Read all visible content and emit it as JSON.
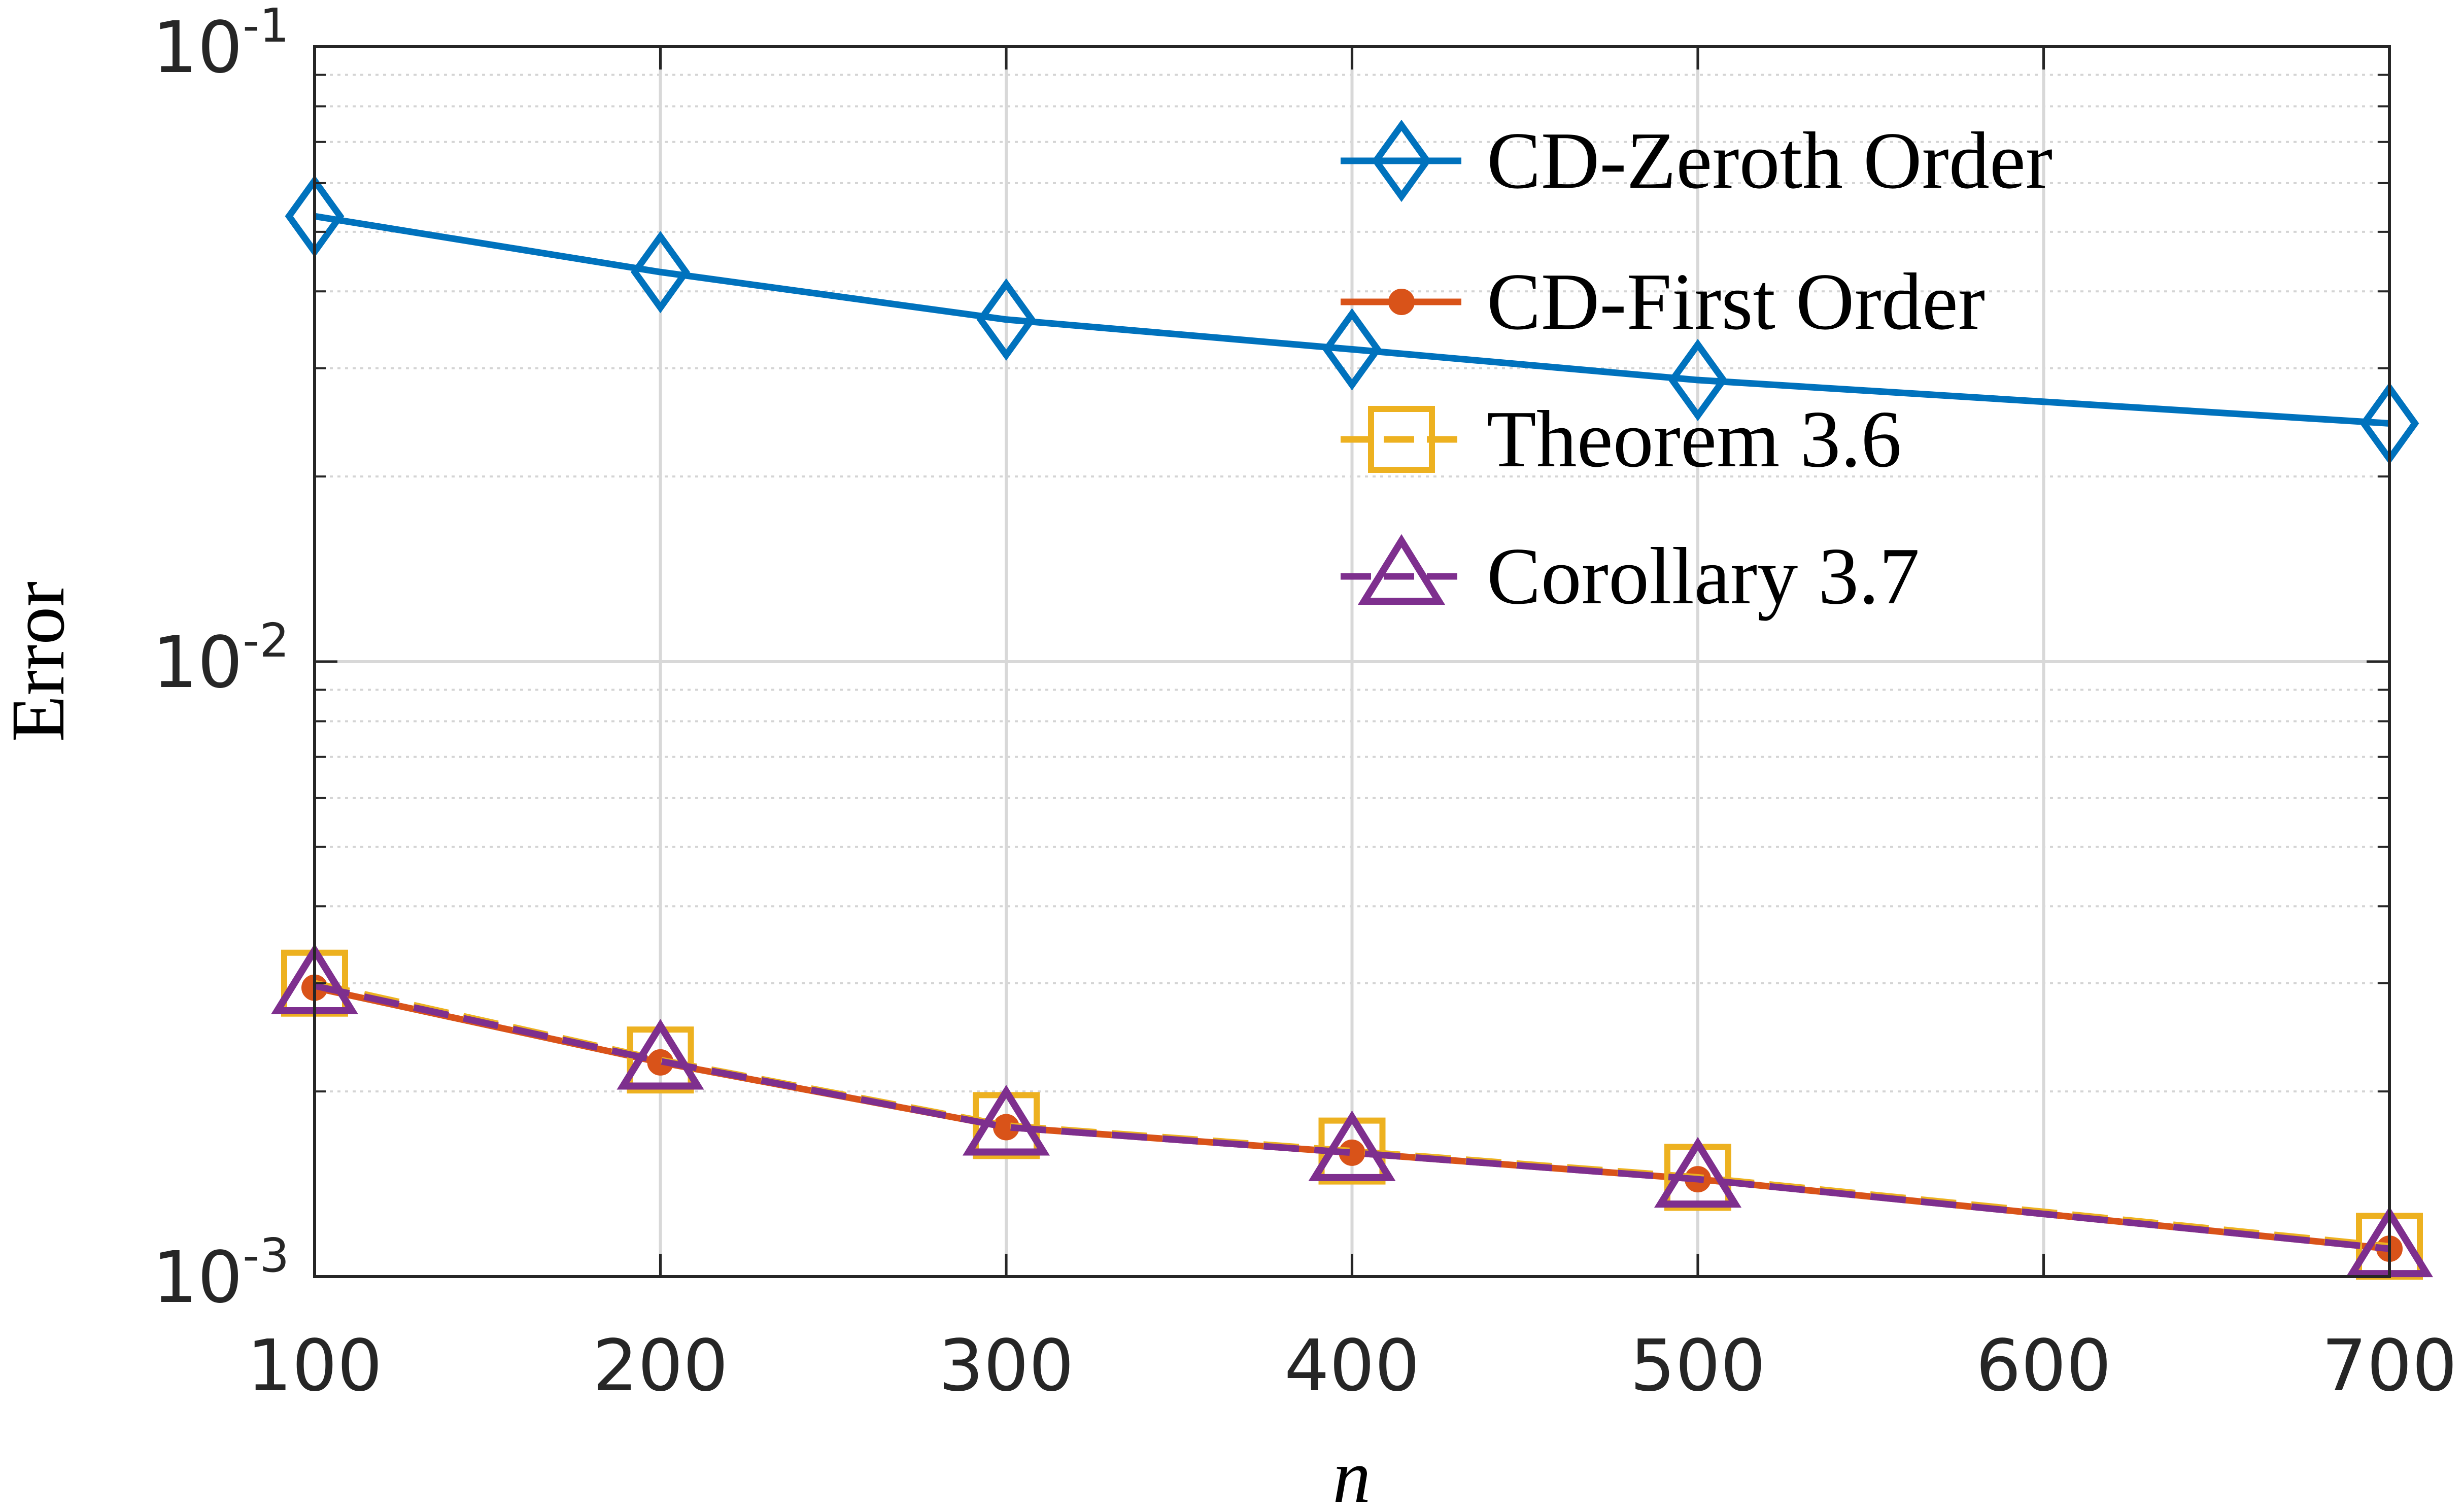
{
  "chart_data": {
    "type": "line",
    "yscale": "log",
    "xlabel": "n",
    "ylabel": "Error",
    "xlim": [
      100,
      700
    ],
    "ylim": [
      0.001,
      0.1
    ],
    "grid": true,
    "legend_position": "top-right",
    "x_ticks": [
      "100",
      "200",
      "300",
      "400",
      "500",
      "600",
      "700"
    ],
    "y_ticks": [
      {
        "value": 0.1,
        "base": "10",
        "exp": "-1"
      },
      {
        "value": 0.01,
        "base": "10",
        "exp": "-2"
      },
      {
        "value": 0.001,
        "base": "10",
        "exp": "-3"
      }
    ],
    "x": [
      100,
      200,
      300,
      400,
      500,
      700
    ],
    "series": [
      {
        "name": "CD-Zeroth Order",
        "color": "#0072BD",
        "marker": "diamond",
        "dash": "solid",
        "values": [
          0.053,
          0.043,
          0.036,
          0.0322,
          0.0287,
          0.0244
        ]
      },
      {
        "name": "CD-First Order",
        "color": "#D95319",
        "marker": "dot",
        "dash": "solid",
        "values": [
          0.00295,
          0.00223,
          0.00175,
          0.00159,
          0.00144,
          0.00111
        ]
      },
      {
        "name": "Theorem 3.6",
        "color": "#EDB120",
        "marker": "square",
        "dash": "dashed",
        "values": [
          0.003,
          0.00225,
          0.00176,
          0.0016,
          0.00145,
          0.00112
        ]
      },
      {
        "name": "Corollary 3.7",
        "color": "#7E2F8E",
        "marker": "triangle",
        "dash": "dashed",
        "values": [
          0.00297,
          0.00224,
          0.00175,
          0.00159,
          0.00144,
          0.00111
        ]
      }
    ]
  }
}
